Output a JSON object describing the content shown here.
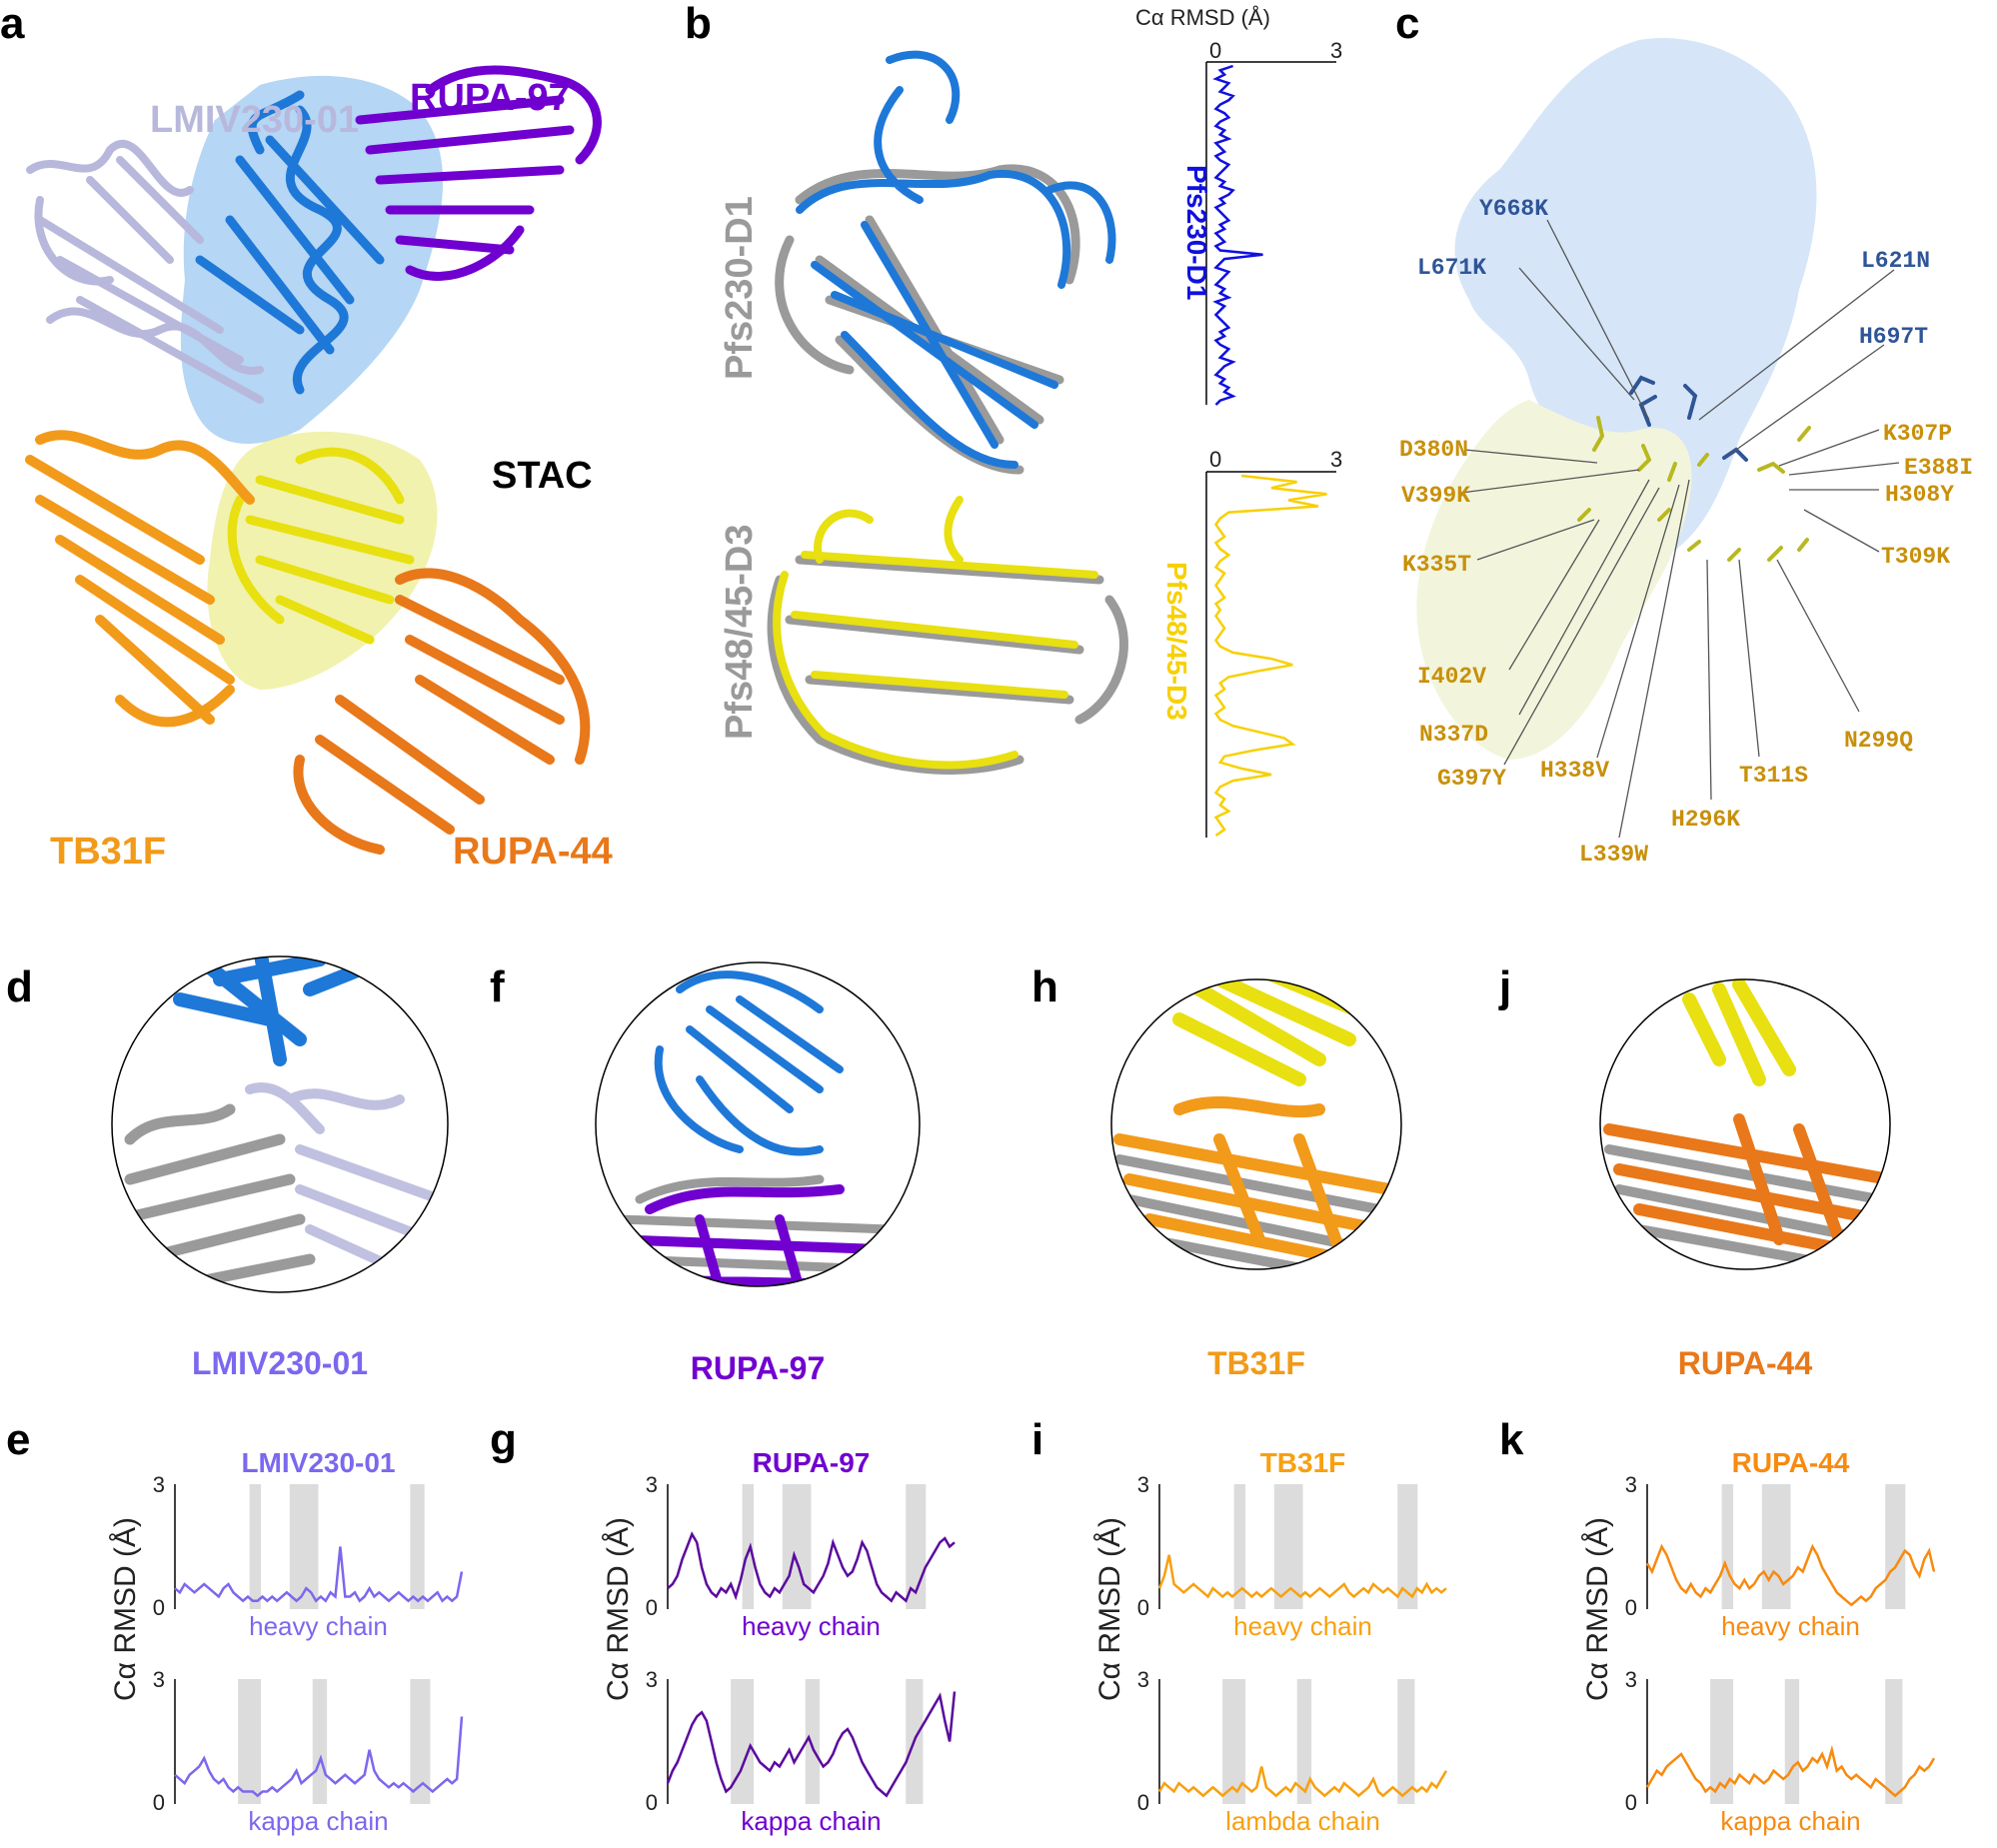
{
  "colors": {
    "lmiv": "#7B68EE",
    "lmiv_light": "#B8B8DC",
    "rupa97": "#7000D0",
    "rupa97_dark": "#5A0A9E",
    "pfs230": "#1E78D8",
    "pfs48": "#E8E010",
    "tb31f": "#F29A1A",
    "rupa44": "#E8781A",
    "rmsd_blue": "#1010E0",
    "rmsd_yellow": "#F8D000",
    "grey": "#9A9A9A",
    "shade": "#DCDCDC",
    "blue_label": "#2F5597",
    "orange_label": "#C8900A"
  },
  "panel_a": {
    "letter": "a",
    "labels": {
      "lmiv": "LMIV230-01",
      "rupa97": "RUPA-97",
      "stac": "STAC",
      "tb31f": "TB31F",
      "rupa44": "RUPA-44"
    }
  },
  "panel_b": {
    "letter": "b",
    "rmsd_title": "Cα RMSD (Å)",
    "domain1": "Pfs230-D1",
    "domain2": "Pfs48/45-D3",
    "tick0": "0",
    "tick3": "3"
  },
  "panel_c": {
    "letter": "c",
    "blue_mutations": [
      "Y668K",
      "L671K",
      "L621N",
      "H697T"
    ],
    "orange_mutations": [
      "D380N",
      "V399K",
      "K335T",
      "I402V",
      "N337D",
      "G397Y",
      "H338V",
      "L339W",
      "H296K",
      "T311S",
      "N299Q",
      "K307P",
      "E388I",
      "H308Y",
      "T309K"
    ]
  },
  "zoom_panels": [
    {
      "letter": "d",
      "name": "LMIV230-01"
    },
    {
      "letter": "f",
      "name": "RUPA-97"
    },
    {
      "letter": "h",
      "name": "TB31F"
    },
    {
      "letter": "j",
      "name": "RUPA-44"
    }
  ],
  "rmsd_panels": [
    {
      "letter": "e",
      "title": "LMIV230-01",
      "chain1": "heavy chain",
      "chain2": "kappa chain"
    },
    {
      "letter": "g",
      "title": "RUPA-97",
      "chain1": "heavy chain",
      "chain2": "kappa chain"
    },
    {
      "letter": "i",
      "title": "TB31F",
      "chain1": "heavy chain",
      "chain2": "lambda chain"
    },
    {
      "letter": "k",
      "title": "RUPA-44",
      "chain1": "heavy chain",
      "chain2": "kappa chain"
    }
  ],
  "rmsd_axis": {
    "ylabel": "Cα RMSD (Å)",
    "y_max": "3",
    "y_min": "0"
  },
  "chart_data": [
    {
      "type": "line",
      "title": "LMIV230-01",
      "panel": "e",
      "ylabel": "Cα RMSD (Å)",
      "ylim": [
        0,
        3
      ],
      "series": [
        {
          "name": "heavy chain",
          "values": [
            0.5,
            0.4,
            0.6,
            0.5,
            0.4,
            0.5,
            0.6,
            0.5,
            0.4,
            0.3,
            0.5,
            0.6,
            0.4,
            0.3,
            0.2,
            0.3,
            0.2,
            0.2,
            0.3,
            0.2,
            0.3,
            0.2,
            0.3,
            0.4,
            0.3,
            0.2,
            0.3,
            0.5,
            0.4,
            0.2,
            0.3,
            0.2,
            0.4,
            0.3,
            1.5,
            0.3,
            0.3,
            0.4,
            0.2,
            0.3,
            0.5,
            0.3,
            0.4,
            0.3,
            0.2,
            0.3,
            0.4,
            0.3,
            0.2,
            0.3,
            0.2,
            0.3,
            0.2,
            0.3,
            0.4,
            0.2,
            0.3,
            0.2,
            0.3,
            0.9
          ],
          "shaded_regions": [
            [
              0.26,
              0.3
            ],
            [
              0.4,
              0.5
            ],
            [
              0.82,
              0.87
            ]
          ]
        },
        {
          "name": "kappa chain",
          "values": [
            0.7,
            0.6,
            0.5,
            0.7,
            0.8,
            0.9,
            1.1,
            0.8,
            0.6,
            0.5,
            0.6,
            0.4,
            0.3,
            0.4,
            0.3,
            0.3,
            0.3,
            0.2,
            0.3,
            0.3,
            0.4,
            0.3,
            0.4,
            0.5,
            0.6,
            0.8,
            0.5,
            0.6,
            0.7,
            0.8,
            1.1,
            0.7,
            0.6,
            0.5,
            0.6,
            0.7,
            0.6,
            0.5,
            0.6,
            0.7,
            1.3,
            0.8,
            0.6,
            0.5,
            0.4,
            0.5,
            0.4,
            0.5,
            0.4,
            0.3,
            0.4,
            0.5,
            0.4,
            0.3,
            0.4,
            0.5,
            0.6,
            0.5,
            0.6,
            2.1
          ],
          "shaded_regions": [
            [
              0.22,
              0.3
            ],
            [
              0.48,
              0.53
            ],
            [
              0.82,
              0.89
            ]
          ]
        }
      ]
    },
    {
      "type": "line",
      "title": "RUPA-97",
      "panel": "g",
      "ylabel": "Cα RMSD (Å)",
      "ylim": [
        0,
        3
      ],
      "series": [
        {
          "name": "heavy chain",
          "values": [
            0.5,
            0.6,
            0.8,
            1.2,
            1.5,
            1.8,
            1.6,
            1.0,
            0.6,
            0.4,
            0.3,
            0.5,
            0.4,
            0.6,
            0.3,
            0.7,
            1.2,
            1.5,
            1.0,
            0.6,
            0.4,
            0.3,
            0.5,
            0.4,
            0.6,
            0.8,
            1.3,
            1.0,
            0.6,
            0.5,
            0.4,
            0.6,
            0.8,
            1.1,
            1.6,
            1.3,
            1.0,
            0.8,
            0.9,
            1.2,
            1.6,
            1.4,
            1.0,
            0.6,
            0.4,
            0.3,
            0.2,
            0.4,
            0.3,
            0.2,
            0.5,
            0.4,
            0.7,
            1.0,
            1.2,
            1.4,
            1.6,
            1.7,
            1.5,
            1.6
          ],
          "shaded_regions": [
            [
              0.26,
              0.3
            ],
            [
              0.4,
              0.5
            ],
            [
              0.83,
              0.9
            ]
          ]
        },
        {
          "name": "kappa chain",
          "values": [
            0.5,
            0.8,
            1.0,
            1.3,
            1.6,
            1.9,
            2.1,
            2.2,
            2.0,
            1.5,
            1.0,
            0.6,
            0.3,
            0.4,
            0.6,
            0.8,
            1.1,
            1.4,
            1.2,
            1.0,
            0.9,
            0.8,
            1.0,
            0.9,
            1.1,
            1.3,
            1.0,
            1.2,
            1.4,
            1.6,
            1.3,
            1.1,
            0.9,
            1.0,
            1.2,
            1.5,
            1.7,
            1.8,
            1.6,
            1.3,
            1.0,
            0.8,
            0.6,
            0.4,
            0.3,
            0.2,
            0.4,
            0.6,
            0.8,
            1.0,
            1.3,
            1.6,
            1.8,
            2.0,
            2.2,
            2.4,
            2.6,
            2.0,
            1.5,
            2.7
          ],
          "shaded_regions": [
            [
              0.22,
              0.3
            ],
            [
              0.48,
              0.53
            ],
            [
              0.83,
              0.89
            ]
          ]
        }
      ]
    },
    {
      "type": "line",
      "title": "TB31F",
      "panel": "i",
      "ylabel": "Cα RMSD (Å)",
      "ylim": [
        0,
        3
      ],
      "series": [
        {
          "name": "heavy chain",
          "values": [
            0.5,
            0.8,
            1.3,
            0.6,
            0.5,
            0.4,
            0.5,
            0.6,
            0.5,
            0.4,
            0.3,
            0.5,
            0.4,
            0.3,
            0.4,
            0.3,
            0.4,
            0.5,
            0.4,
            0.3,
            0.4,
            0.3,
            0.4,
            0.5,
            0.4,
            0.3,
            0.4,
            0.5,
            0.4,
            0.3,
            0.4,
            0.3,
            0.4,
            0.5,
            0.4,
            0.3,
            0.4,
            0.5,
            0.6,
            0.4,
            0.3,
            0.4,
            0.5,
            0.4,
            0.6,
            0.5,
            0.4,
            0.5,
            0.4,
            0.3,
            0.5,
            0.4,
            0.3,
            0.5,
            0.4,
            0.6,
            0.4,
            0.5,
            0.4,
            0.5
          ],
          "shaded_regions": [
            [
              0.26,
              0.3
            ],
            [
              0.4,
              0.5
            ],
            [
              0.83,
              0.9
            ]
          ]
        },
        {
          "name": "lambda chain",
          "values": [
            0.3,
            0.5,
            0.4,
            0.3,
            0.5,
            0.4,
            0.3,
            0.4,
            0.3,
            0.2,
            0.3,
            0.4,
            0.3,
            0.2,
            0.3,
            0.4,
            0.3,
            0.5,
            0.4,
            0.3,
            0.4,
            0.9,
            0.4,
            0.3,
            0.2,
            0.3,
            0.4,
            0.3,
            0.5,
            0.4,
            0.3,
            0.6,
            0.4,
            0.3,
            0.2,
            0.3,
            0.4,
            0.3,
            0.5,
            0.4,
            0.3,
            0.2,
            0.3,
            0.4,
            0.6,
            0.3,
            0.2,
            0.3,
            0.4,
            0.3,
            0.2,
            0.3,
            0.4,
            0.3,
            0.4,
            0.3,
            0.5,
            0.4,
            0.6,
            0.8
          ],
          "shaded_regions": [
            [
              0.22,
              0.3
            ],
            [
              0.48,
              0.53
            ],
            [
              0.83,
              0.89
            ]
          ]
        }
      ]
    },
    {
      "type": "line",
      "title": "RUPA-44",
      "panel": "k",
      "ylabel": "Cα RMSD (Å)",
      "ylim": [
        0,
        3
      ],
      "series": [
        {
          "name": "heavy chain",
          "values": [
            1.1,
            0.9,
            1.2,
            1.5,
            1.3,
            1.0,
            0.7,
            0.5,
            0.4,
            0.6,
            0.4,
            0.3,
            0.5,
            0.4,
            0.6,
            0.8,
            1.1,
            0.8,
            0.6,
            0.5,
            0.7,
            0.5,
            0.6,
            0.8,
            0.9,
            0.7,
            0.9,
            0.8,
            0.6,
            0.7,
            0.8,
            1.0,
            0.9,
            1.2,
            1.5,
            1.3,
            1.0,
            0.8,
            0.6,
            0.4,
            0.3,
            0.2,
            0.1,
            0.2,
            0.3,
            0.2,
            0.3,
            0.5,
            0.6,
            0.7,
            0.9,
            1.0,
            1.2,
            1.4,
            1.3,
            1.0,
            0.8,
            1.2,
            1.4,
            0.9
          ],
          "shaded_regions": [
            [
              0.26,
              0.3
            ],
            [
              0.4,
              0.5
            ],
            [
              0.83,
              0.9
            ]
          ]
        },
        {
          "name": "kappa chain",
          "values": [
            0.4,
            0.6,
            0.8,
            0.7,
            0.9,
            1.0,
            1.1,
            1.2,
            1.0,
            0.8,
            0.6,
            0.5,
            0.3,
            0.4,
            0.3,
            0.5,
            0.4,
            0.6,
            0.5,
            0.7,
            0.6,
            0.5,
            0.7,
            0.6,
            0.5,
            0.6,
            0.8,
            0.7,
            0.6,
            0.7,
            0.9,
            1.0,
            0.8,
            0.9,
            1.1,
            1.0,
            1.2,
            0.9,
            1.3,
            0.8,
            0.9,
            0.7,
            0.6,
            0.7,
            0.6,
            0.5,
            0.4,
            0.6,
            0.5,
            0.4,
            0.3,
            0.2,
            0.3,
            0.4,
            0.6,
            0.7,
            0.9,
            0.8,
            0.9,
            1.1
          ],
          "shaded_regions": [
            [
              0.22,
              0.3
            ],
            [
              0.48,
              0.53
            ],
            [
              0.83,
              0.89
            ]
          ]
        }
      ]
    },
    {
      "type": "line",
      "title": "",
      "panel": "b",
      "xlabel": "Cα RMSD (Å)",
      "xlim": [
        0,
        3
      ],
      "series": [
        {
          "name": "Pfs230-D1",
          "values": [
            0.6,
            0.3,
            0.4,
            0.2,
            0.5,
            0.4,
            0.3,
            0.6,
            0.5,
            0.3,
            0.2,
            0.4,
            0.5,
            0.3,
            0.2,
            0.4,
            0.3,
            0.5,
            0.2,
            0.3,
            0.4,
            0.2,
            0.3,
            0.5,
            0.4,
            0.3,
            0.2,
            0.4,
            0.3,
            0.6,
            0.5,
            0.3,
            0.4,
            0.2,
            0.3,
            0.4,
            0.5,
            0.3,
            0.4,
            0.2,
            0.3,
            0.4,
            0.2,
            0.3,
            1.3,
            0.4,
            0.3,
            0.2,
            0.5,
            0.4,
            0.3,
            0.2,
            0.4,
            0.3,
            0.5,
            0.2,
            0.4,
            0.3,
            0.2,
            0.3,
            0.4,
            0.5,
            0.3,
            0.4,
            0.2,
            0.3,
            0.5,
            0.4,
            0.3,
            0.6,
            0.4,
            0.3,
            0.2,
            0.4,
            0.3,
            0.5,
            0.4,
            0.6,
            0.3,
            0.2
          ]
        },
        {
          "name": "Pfs48/45-D3",
          "values": [
            0.8,
            2.1,
            1.5,
            2.8,
            1.9,
            2.6,
            0.5,
            0.3,
            0.2,
            0.3,
            0.4,
            0.2,
            0.3,
            0.5,
            0.3,
            0.2,
            0.4,
            0.3,
            0.2,
            0.3,
            0.4,
            0.2,
            0.3,
            0.2,
            0.3,
            0.4,
            0.3,
            0.2,
            0.3,
            0.6,
            1.5,
            2.0,
            1.2,
            0.5,
            0.3,
            0.4,
            0.2,
            0.3,
            0.4,
            0.2,
            0.3,
            0.6,
            1.2,
            1.8,
            2.0,
            1.1,
            0.4,
            0.3,
            0.8,
            1.5,
            0.6,
            0.3,
            0.2,
            0.4,
            0.3,
            0.5,
            0.2,
            0.3,
            0.4,
            0.2
          ]
        }
      ]
    }
  ]
}
